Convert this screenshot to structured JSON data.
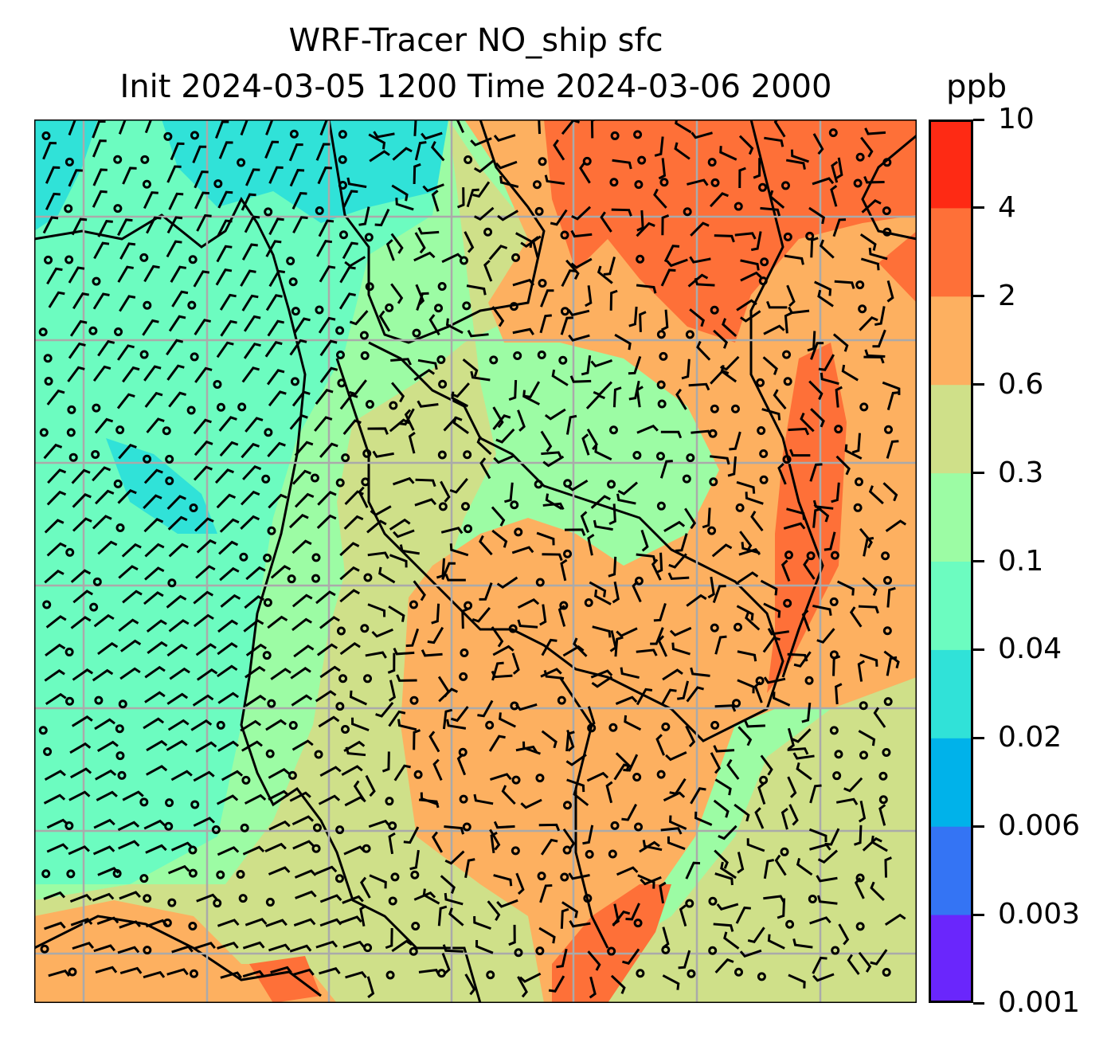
{
  "title": {
    "line1": "WRF-Tracer NO_ship sfc",
    "line2": "Init 2024-03-05 1200 Time 2024-03-06 2000",
    "units": "ppb"
  },
  "chart_data": {
    "type": "heatmap",
    "title": "WRF-Tracer NO_ship sfc / Init 2024-03-05 1200 Time 2024-03-06 2000",
    "units": "ppb",
    "colorbar": {
      "levels": [
        "0.001",
        "0.003",
        "0.006",
        "0.02",
        "0.04",
        "0.1",
        "0.3",
        "0.6",
        "2",
        "4",
        "10"
      ],
      "colors": [
        "#6a26fc",
        "#3474f4",
        "#00b2ea",
        "#30e2d8",
        "#6cfcc0",
        "#9cfca4",
        "#cfe089",
        "#fdb060",
        "#fe7038",
        "#fe2a14"
      ]
    },
    "grid": true
  }
}
